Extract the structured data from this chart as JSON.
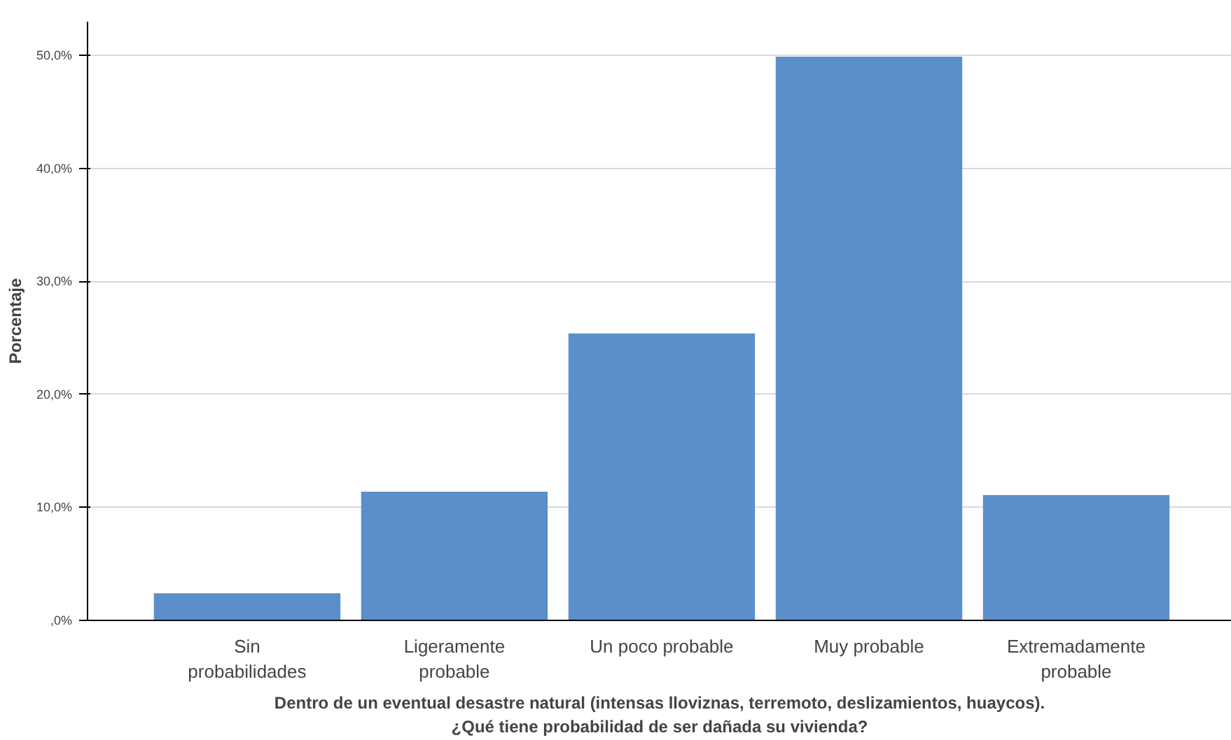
{
  "chart_data": {
    "type": "bar",
    "categories": [
      "Sin\nprobabilidades",
      "Ligeramente\nprobable",
      "Un poco probable",
      "Muy probable",
      "Extremadamente\nprobable"
    ],
    "values": [
      2.4,
      11.4,
      25.4,
      49.9,
      11.1
    ],
    "color": "#5b8fc9",
    "xlabel": "Dentro de un eventual desastre natural (intensas lloviznas, terremoto, deslizamientos, huaycos).\n¿Qué tiene probabilidad de ser dañada su vivienda?",
    "ylabel": "Porcentaje",
    "ylim": [
      0,
      53
    ],
    "yticks": [
      {
        "value": 0,
        "label": ",0%"
      },
      {
        "value": 10,
        "label": "10,0%"
      },
      {
        "value": 20,
        "label": "20,0%"
      },
      {
        "value": 30,
        "label": "30,0%"
      },
      {
        "value": 40,
        "label": "40,0%"
      },
      {
        "value": 50,
        "label": "50,0%"
      }
    ],
    "grid": "y"
  }
}
